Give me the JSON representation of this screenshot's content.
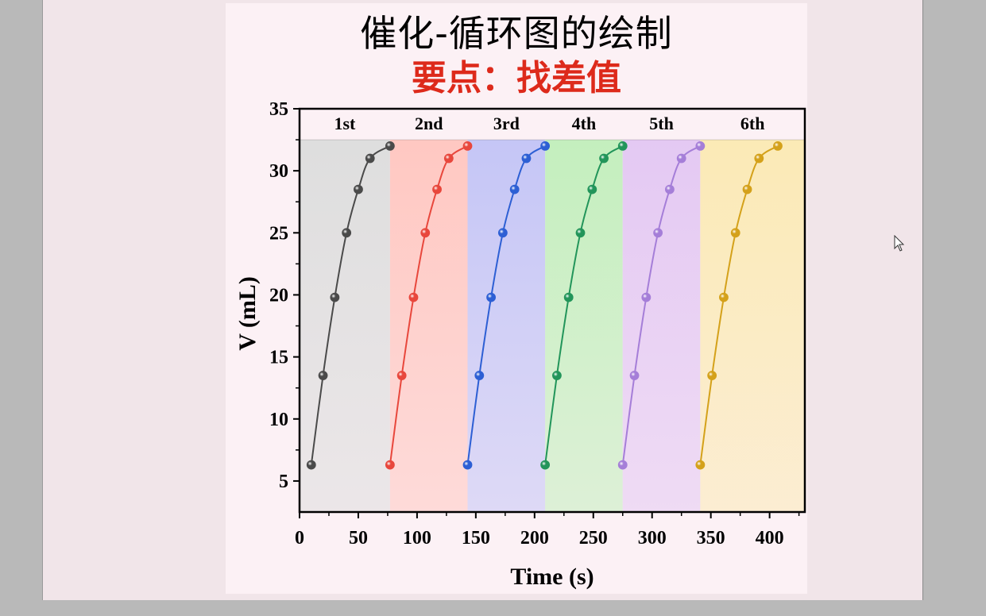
{
  "title": "催化-循环图的绘制",
  "subtitle": "要点：找差值",
  "subtitle_color": "#dd2a1b",
  "chart_data": {
    "type": "line",
    "xlabel": "Time (s)",
    "ylabel": "V (mL)",
    "xlim": [
      0,
      430
    ],
    "ylim": [
      2.5,
      35
    ],
    "xticks": [
      0,
      50,
      100,
      150,
      200,
      250,
      300,
      350,
      400
    ],
    "yticks": [
      5,
      10,
      15,
      20,
      25,
      30,
      35
    ],
    "cycle_label_level": 32.5,
    "cycles": [
      {
        "label": "1st",
        "start": 0,
        "end": 77,
        "color": "#4a4a4a",
        "band": "#dedede",
        "x": [
          10,
          20,
          30,
          40,
          50,
          60,
          77
        ],
        "y": [
          6.3,
          13.5,
          19.8,
          25.0,
          28.5,
          31.0,
          32.0
        ]
      },
      {
        "label": "2nd",
        "start": 77,
        "end": 143,
        "color": "#e8473c",
        "band": "#ffc8c2",
        "x": [
          77,
          87,
          97,
          107,
          117,
          127,
          143
        ],
        "y": [
          6.3,
          13.5,
          19.8,
          25.0,
          28.5,
          31.0,
          32.0
        ]
      },
      {
        "label": "3rd",
        "start": 143,
        "end": 209,
        "color": "#2d5fd4",
        "band": "#c5c6f6",
        "x": [
          143,
          153,
          163,
          173,
          183,
          193,
          209
        ],
        "y": [
          6.3,
          13.5,
          19.8,
          25.0,
          28.5,
          31.0,
          32.0
        ]
      },
      {
        "label": "4th",
        "start": 209,
        "end": 275,
        "color": "#22955a",
        "band": "#c4efbe",
        "x": [
          209,
          219,
          229,
          239,
          249,
          259,
          275
        ],
        "y": [
          6.3,
          13.5,
          19.8,
          25.0,
          28.5,
          31.0,
          32.0
        ]
      },
      {
        "label": "5th",
        "start": 275,
        "end": 341,
        "color": "#a57ed8",
        "band": "#e4c9f3",
        "x": [
          275,
          285,
          295,
          305,
          315,
          325,
          341
        ],
        "y": [
          6.3,
          13.5,
          19.8,
          25.0,
          28.5,
          31.0,
          32.0
        ]
      },
      {
        "label": "6th",
        "start": 341,
        "end": 430,
        "color": "#d4a11a",
        "band": "#fbeab6",
        "x": [
          341,
          351,
          361,
          371,
          381,
          391,
          407
        ],
        "y": [
          6.3,
          13.5,
          19.8,
          25.0,
          28.5,
          31.0,
          32.0
        ]
      }
    ]
  }
}
